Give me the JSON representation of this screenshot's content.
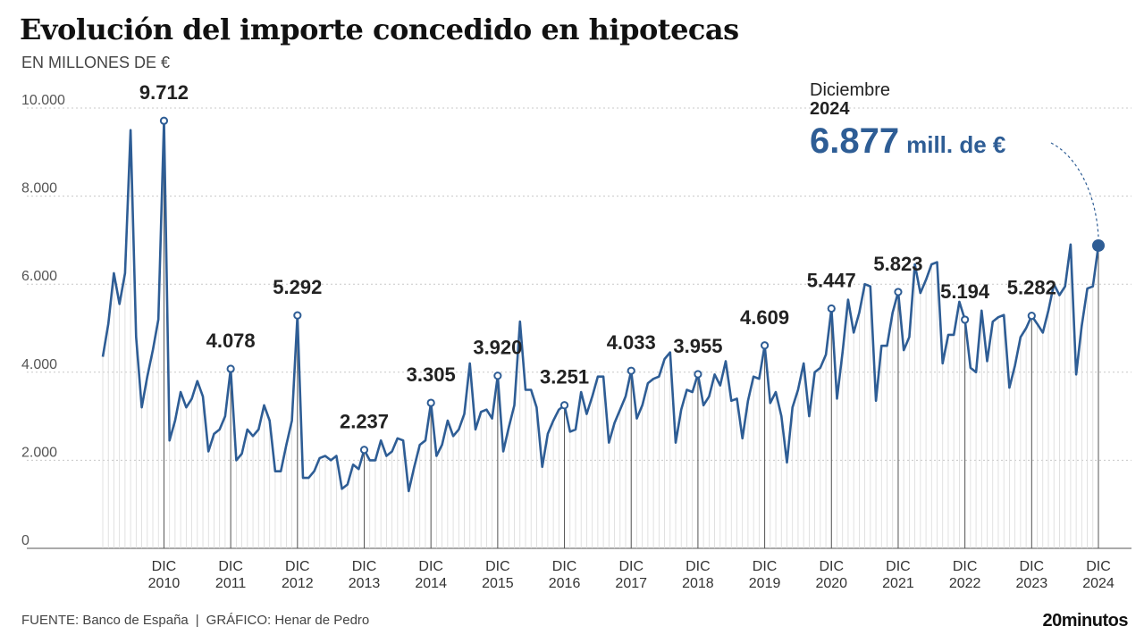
{
  "title": "Evolución del importe concedido en hipotecas",
  "subtitle": "EN MILLONES DE €",
  "footer": {
    "source": "FUENTE: Banco de España",
    "separator": "|",
    "credit": "GRÁFICO: Henar de Pedro",
    "brand": "20minutos"
  },
  "callout": {
    "month": "Diciembre",
    "year": "2024",
    "value": "6.877",
    "unit": "mill. de €"
  },
  "colors": {
    "line": "#2e5d95",
    "grid": "#c8c8c8",
    "drop": "#555555"
  },
  "chart_data": {
    "type": "line",
    "ylim": [
      0,
      10000
    ],
    "yticks": [
      0,
      2000,
      4000,
      6000,
      8000,
      10000
    ],
    "ytick_labels": [
      "0",
      "2.000",
      "4.000",
      "6.000",
      "8.000",
      "10.000"
    ],
    "x_start": "2010-01",
    "x_end": "2024-12",
    "x_tick_labels": [
      {
        "date": "2010-12",
        "top": "DIC",
        "bottom": "2010"
      },
      {
        "date": "2011-12",
        "top": "DIC",
        "bottom": "2011"
      },
      {
        "date": "2012-12",
        "top": "DIC",
        "bottom": "2012"
      },
      {
        "date": "2013-12",
        "top": "DIC",
        "bottom": "2013"
      },
      {
        "date": "2014-12",
        "top": "DIC",
        "bottom": "2014"
      },
      {
        "date": "2015-12",
        "top": "DIC",
        "bottom": "2015"
      },
      {
        "date": "2016-12",
        "top": "DIC",
        "bottom": "2016"
      },
      {
        "date": "2017-12",
        "top": "DIC",
        "bottom": "2017"
      },
      {
        "date": "2018-12",
        "top": "DIC",
        "bottom": "2018"
      },
      {
        "date": "2019-12",
        "top": "DIC",
        "bottom": "2019"
      },
      {
        "date": "2020-12",
        "top": "DIC",
        "bottom": "2020"
      },
      {
        "date": "2021-12",
        "top": "DIC",
        "bottom": "2021"
      },
      {
        "date": "2022-12",
        "top": "DIC",
        "bottom": "2022"
      },
      {
        "date": "2023-12",
        "top": "DIC",
        "bottom": "2023"
      },
      {
        "date": "2024-12",
        "top": "DIC",
        "bottom": "2024"
      }
    ],
    "december_labels": [
      {
        "date": "2010-12",
        "value": 9712,
        "label": "9.712"
      },
      {
        "date": "2011-12",
        "value": 4078,
        "label": "4.078"
      },
      {
        "date": "2012-12",
        "value": 5292,
        "label": "5.292"
      },
      {
        "date": "2013-12",
        "value": 2237,
        "label": "2.237"
      },
      {
        "date": "2014-12",
        "value": 3305,
        "label": "3.305"
      },
      {
        "date": "2015-12",
        "value": 3920,
        "label": "3.920"
      },
      {
        "date": "2016-12",
        "value": 3251,
        "label": "3.251"
      },
      {
        "date": "2017-12",
        "value": 4033,
        "label": "4.033"
      },
      {
        "date": "2018-12",
        "value": 3955,
        "label": "3.955"
      },
      {
        "date": "2019-12",
        "value": 4609,
        "label": "4.609"
      },
      {
        "date": "2020-12",
        "value": 5447,
        "label": "5.447"
      },
      {
        "date": "2021-12",
        "value": 5823,
        "label": "5.823"
      },
      {
        "date": "2022-12",
        "value": 5194,
        "label": "5.194"
      },
      {
        "date": "2023-12",
        "value": 5282,
        "label": "5.282"
      }
    ],
    "highlight": {
      "date": "2024-12",
      "value": 6877
    },
    "values": [
      4350,
      5100,
      6250,
      5550,
      6250,
      9500,
      4800,
      3200,
      3900,
      4500,
      5200,
      9712,
      2450,
      2900,
      3550,
      3200,
      3400,
      3800,
      3450,
      2200,
      2600,
      2700,
      3000,
      4078,
      2000,
      2150,
      2700,
      2550,
      2700,
      3250,
      2900,
      1750,
      1750,
      2350,
      2900,
      5292,
      1600,
      1600,
      1750,
      2050,
      2100,
      2000,
      2100,
      1350,
      1450,
      1900,
      1800,
      2237,
      2000,
      2000,
      2450,
      2100,
      2200,
      2500,
      2450,
      1300,
      1850,
      2350,
      2450,
      3305,
      2100,
      2350,
      2900,
      2550,
      2700,
      3050,
      4200,
      2700,
      3100,
      3150,
      2950,
      3920,
      2200,
      2750,
      3250,
      5150,
      3600,
      3600,
      3200,
      1850,
      2600,
      2900,
      3150,
      3251,
      2650,
      2700,
      3550,
      3050,
      3450,
      3900,
      3900,
      2400,
      2850,
      3150,
      3450,
      4033,
      2950,
      3250,
      3750,
      3850,
      3900,
      4300,
      4450,
      2400,
      3150,
      3600,
      3550,
      3955,
      3250,
      3450,
      3950,
      3700,
      4250,
      3350,
      3400,
      2500,
      3350,
      3900,
      3850,
      4609,
      3300,
      3550,
      3000,
      1950,
      3200,
      3600,
      4200,
      3000,
      4000,
      4100,
      4400,
      5447,
      3400,
      4450,
      5650,
      4900,
      5350,
      6000,
      5950,
      3350,
      4600,
      4600,
      5350,
      5823,
      4500,
      4800,
      6450,
      5800,
      6100,
      6450,
      6500,
      4200,
      4850,
      4850,
      5600,
      5194,
      4100,
      4000,
      5400,
      4250,
      5150,
      5250,
      5300,
      3650,
      4150,
      4800,
      5000,
      5282,
      5100,
      4900,
      5400,
      6000,
      5750,
      5950,
      6900,
      3950,
      5050,
      5900,
      5950,
      6877
    ]
  }
}
